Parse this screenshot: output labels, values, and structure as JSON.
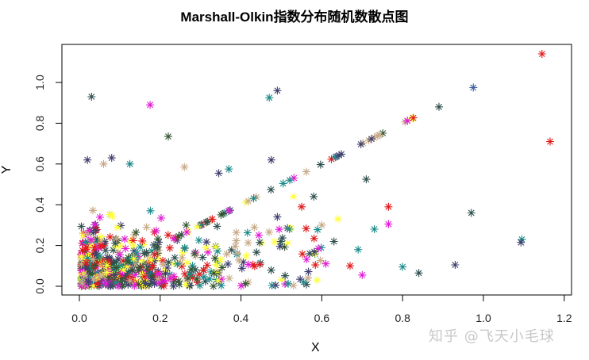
{
  "chart_data": {
    "type": "scatter",
    "title": "Marshall-Olkin指数分布随机数散点图",
    "xlabel": "X",
    "ylabel": "Y",
    "xlim": [
      -0.05,
      1.22
    ],
    "ylim": [
      -0.04,
      1.18
    ],
    "xticks": [
      "0.0",
      "0.2",
      "0.4",
      "0.6",
      "0.8",
      "1.0",
      "1.2"
    ],
    "yticks": [
      "0.0",
      "0.2",
      "0.4",
      "0.6",
      "0.8",
      "1.0"
    ],
    "grid": false,
    "legend": null,
    "marker": "asterisk",
    "palette": [
      "#e31a1c",
      "#e41ad6",
      "#ffff33",
      "#1b8a8a",
      "#2f4f4f",
      "#3f3f6f",
      "#c8aa88",
      "#33552f"
    ],
    "notable_points": [
      {
        "x": 1.145,
        "y": 1.14,
        "color": "#e31a1c"
      },
      {
        "x": 1.165,
        "y": 0.71,
        "color": "#e31a1c"
      },
      {
        "x": 0.975,
        "y": 0.975,
        "color": "#3f5f9f"
      },
      {
        "x": 0.89,
        "y": 0.88,
        "color": "#2f4f4f"
      },
      {
        "x": 0.03,
        "y": 0.93,
        "color": "#2f4f4f"
      },
      {
        "x": 0.175,
        "y": 0.89,
        "color": "#e41ad6"
      },
      {
        "x": 0.22,
        "y": 0.735,
        "color": "#33552f"
      },
      {
        "x": 0.49,
        "y": 0.96,
        "color": "#3f3f6f"
      },
      {
        "x": 0.47,
        "y": 0.925,
        "color": "#1b8a8a"
      },
      {
        "x": 0.02,
        "y": 0.62,
        "color": "#3f3f6f"
      },
      {
        "x": 0.08,
        "y": 0.63,
        "color": "#3f3f6f"
      },
      {
        "x": 0.06,
        "y": 0.6,
        "color": "#c8aa88"
      },
      {
        "x": 0.125,
        "y": 0.6,
        "color": "#1b8a8a"
      },
      {
        "x": 0.26,
        "y": 0.585,
        "color": "#c8aa88"
      },
      {
        "x": 0.37,
        "y": 0.575,
        "color": "#1b8a8a"
      },
      {
        "x": 0.345,
        "y": 0.555,
        "color": "#3f3f6f"
      },
      {
        "x": 0.475,
        "y": 0.62,
        "color": "#3f3f6f"
      },
      {
        "x": 0.71,
        "y": 0.525,
        "color": "#2f4f4f"
      },
      {
        "x": 0.765,
        "y": 0.39,
        "color": "#e31a1c"
      },
      {
        "x": 0.765,
        "y": 0.305,
        "color": "#e41ad6"
      },
      {
        "x": 0.97,
        "y": 0.36,
        "color": "#2f4f4f"
      },
      {
        "x": 1.095,
        "y": 0.23,
        "color": "#1b8a8a"
      },
      {
        "x": 1.093,
        "y": 0.215,
        "color": "#3f3f6f"
      },
      {
        "x": 0.93,
        "y": 0.105,
        "color": "#3f3f6f"
      },
      {
        "x": 0.84,
        "y": 0.065,
        "color": "#2f4f4f"
      },
      {
        "x": 0.8,
        "y": 0.095,
        "color": "#1b8a8a"
      },
      {
        "x": 0.73,
        "y": 0.28,
        "color": "#1b8a8a"
      },
      {
        "x": 0.69,
        "y": 0.18,
        "color": "#1b8a8a"
      },
      {
        "x": 0.7,
        "y": 0.055,
        "color": "#e41ad6"
      },
      {
        "x": 0.63,
        "y": 0.22,
        "color": "#2f4f4f"
      },
      {
        "x": 0.6,
        "y": 0.3,
        "color": "#c8aa88"
      },
      {
        "x": 0.64,
        "y": 0.33,
        "color": "#ffff33"
      },
      {
        "x": 0.58,
        "y": 0.44,
        "color": "#2f4f4f"
      },
      {
        "x": 0.55,
        "y": 0.39,
        "color": "#e31a1c"
      },
      {
        "x": 0.61,
        "y": 0.11,
        "color": "#e41ad6"
      },
      {
        "x": 0.555,
        "y": 0.02,
        "color": "#1b8a8a"
      },
      {
        "x": 0.67,
        "y": 0.1,
        "color": "#e31a1c"
      },
      {
        "x": 0.52,
        "y": 0.28,
        "color": "#1b8a8a"
      },
      {
        "x": 0.49,
        "y": 0.34,
        "color": "#3f3f6f"
      },
      {
        "x": 0.53,
        "y": 0.44,
        "color": "#ffff33"
      },
      {
        "x": 0.57,
        "y": 0.16,
        "color": "#2f4f4f"
      }
    ],
    "diagonal": {
      "description": "points lying on y = x",
      "x_from": 0.02,
      "x_to": 0.84,
      "count": 90
    },
    "cluster": {
      "description": "dense cloud near origin",
      "x_range": [
        0.0,
        0.45
      ],
      "y_range": [
        0.0,
        0.45
      ],
      "count": 520
    }
  },
  "watermark": "知乎 @飞天小毛球"
}
